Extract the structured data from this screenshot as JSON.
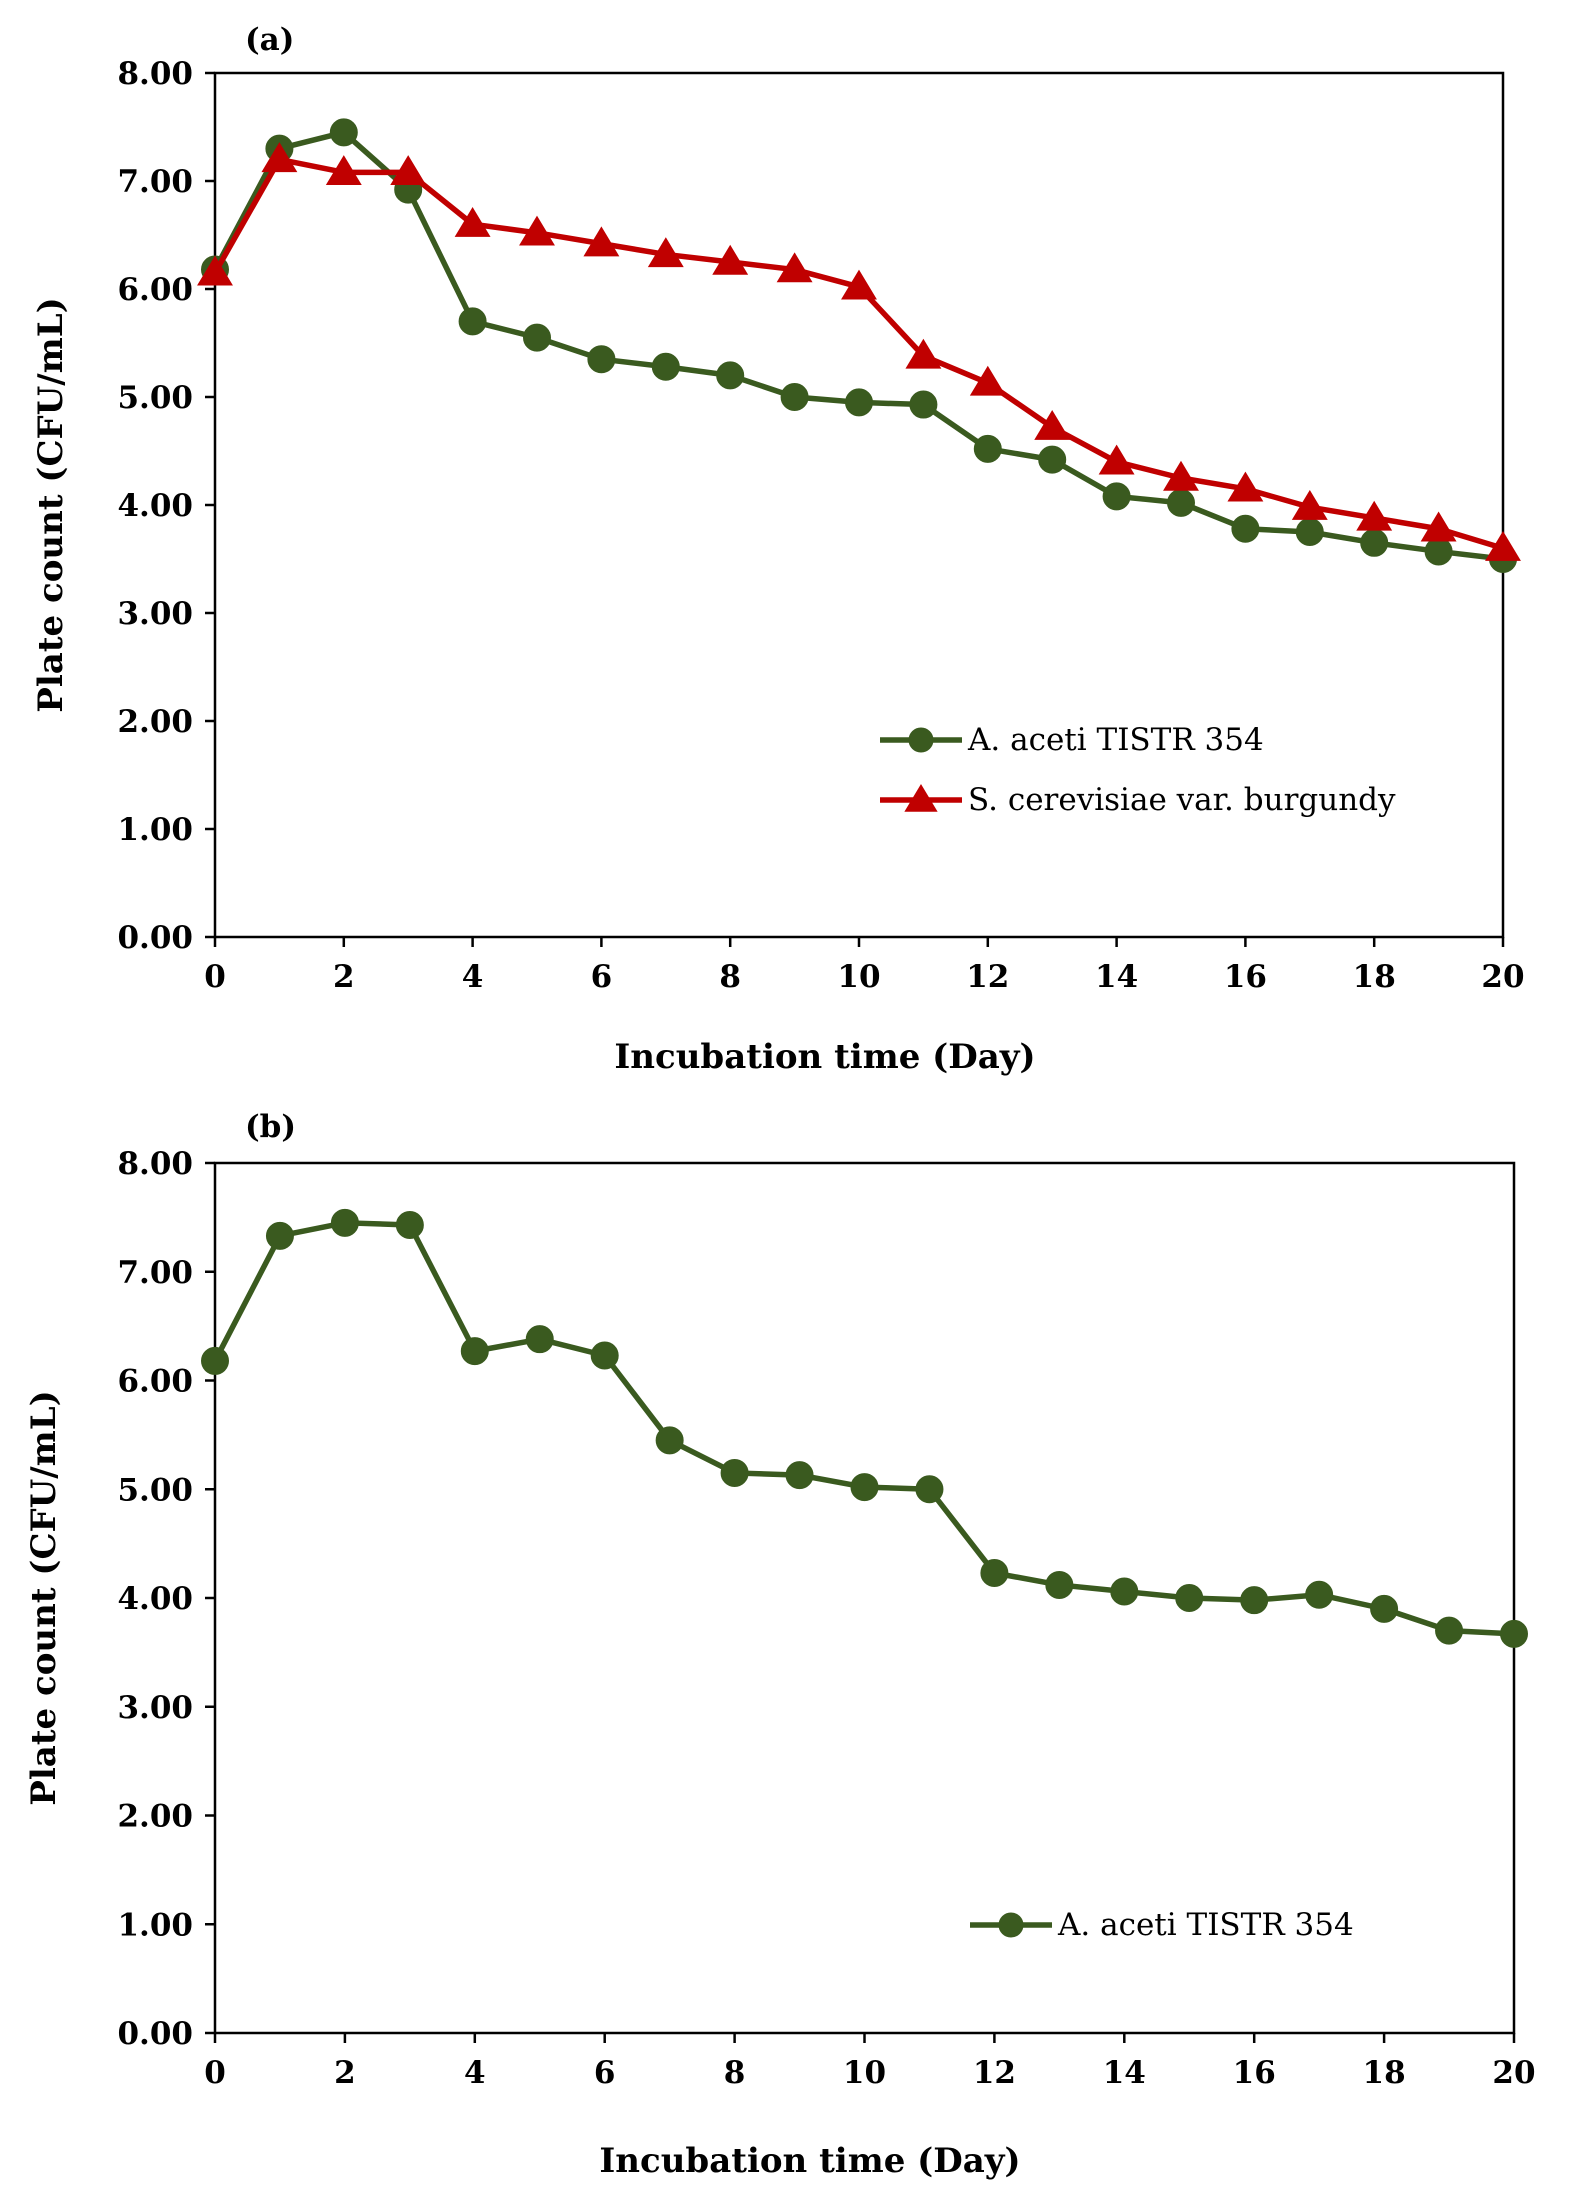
{
  "chart_data": [
    {
      "type": "line",
      "panel_label": "(a)",
      "title": "",
      "xlabel": "Incubation time (Day)",
      "ylabel": "Plate count (CFU/mL)",
      "xlim": [
        0,
        20
      ],
      "ylim": [
        0,
        8
      ],
      "xticks": [
        0,
        2,
        4,
        6,
        8,
        10,
        12,
        14,
        16,
        18,
        20
      ],
      "yticks": [
        0,
        1,
        2,
        3,
        4,
        5,
        6,
        7,
        8
      ],
      "ytick_labels": [
        "0.00",
        "1.00",
        "2.00",
        "3.00",
        "4.00",
        "5.00",
        "6.00",
        "7.00",
        "8.00"
      ],
      "grid": false,
      "legend_position": "lower-right",
      "x": [
        0,
        1,
        2,
        3,
        4,
        5,
        6,
        7,
        8,
        9,
        10,
        11,
        12,
        13,
        14,
        15,
        16,
        17,
        18,
        19,
        20
      ],
      "series": [
        {
          "name": "A. aceti TISTR 354",
          "color": "#3a5a1f",
          "marker": "circle",
          "values": [
            6.18,
            7.3,
            7.45,
            6.92,
            5.7,
            5.55,
            5.35,
            5.28,
            5.2,
            5.0,
            4.95,
            4.93,
            4.52,
            4.42,
            4.08,
            4.02,
            3.78,
            3.75,
            3.65,
            3.57,
            3.5
          ]
        },
        {
          "name": "S. cerevisiae var. burgundy",
          "color": "#c00000",
          "marker": "triangle",
          "values": [
            6.15,
            7.2,
            7.08,
            7.08,
            6.6,
            6.52,
            6.42,
            6.32,
            6.25,
            6.18,
            6.02,
            5.38,
            5.13,
            4.72,
            4.4,
            4.25,
            4.15,
            3.98,
            3.88,
            3.78,
            3.6
          ]
        }
      ]
    },
    {
      "type": "line",
      "panel_label": "(b)",
      "title": "",
      "xlabel": "Incubation time (Day)",
      "ylabel": "Plate count (CFU/mL)",
      "xlim": [
        0,
        20
      ],
      "ylim": [
        0,
        8
      ],
      "xticks": [
        0,
        2,
        4,
        6,
        8,
        10,
        12,
        14,
        16,
        18,
        20
      ],
      "yticks": [
        0,
        1,
        2,
        3,
        4,
        5,
        6,
        7,
        8
      ],
      "ytick_labels": [
        "0.00",
        "1.00",
        "2.00",
        "3.00",
        "4.00",
        "5.00",
        "6.00",
        "7.00",
        "8.00"
      ],
      "grid": false,
      "legend_position": "lower-right",
      "x": [
        0,
        1,
        2,
        3,
        4,
        5,
        6,
        7,
        8,
        9,
        10,
        11,
        12,
        13,
        14,
        15,
        16,
        17,
        18,
        19,
        20
      ],
      "series": [
        {
          "name": "A. aceti TISTR 354",
          "color": "#3a5a1f",
          "marker": "circle",
          "values": [
            6.18,
            7.33,
            7.45,
            7.43,
            6.27,
            6.38,
            6.23,
            5.45,
            5.15,
            5.13,
            5.02,
            5.0,
            4.23,
            4.12,
            4.06,
            4.0,
            3.98,
            4.03,
            3.9,
            3.7,
            3.67
          ]
        }
      ]
    }
  ]
}
